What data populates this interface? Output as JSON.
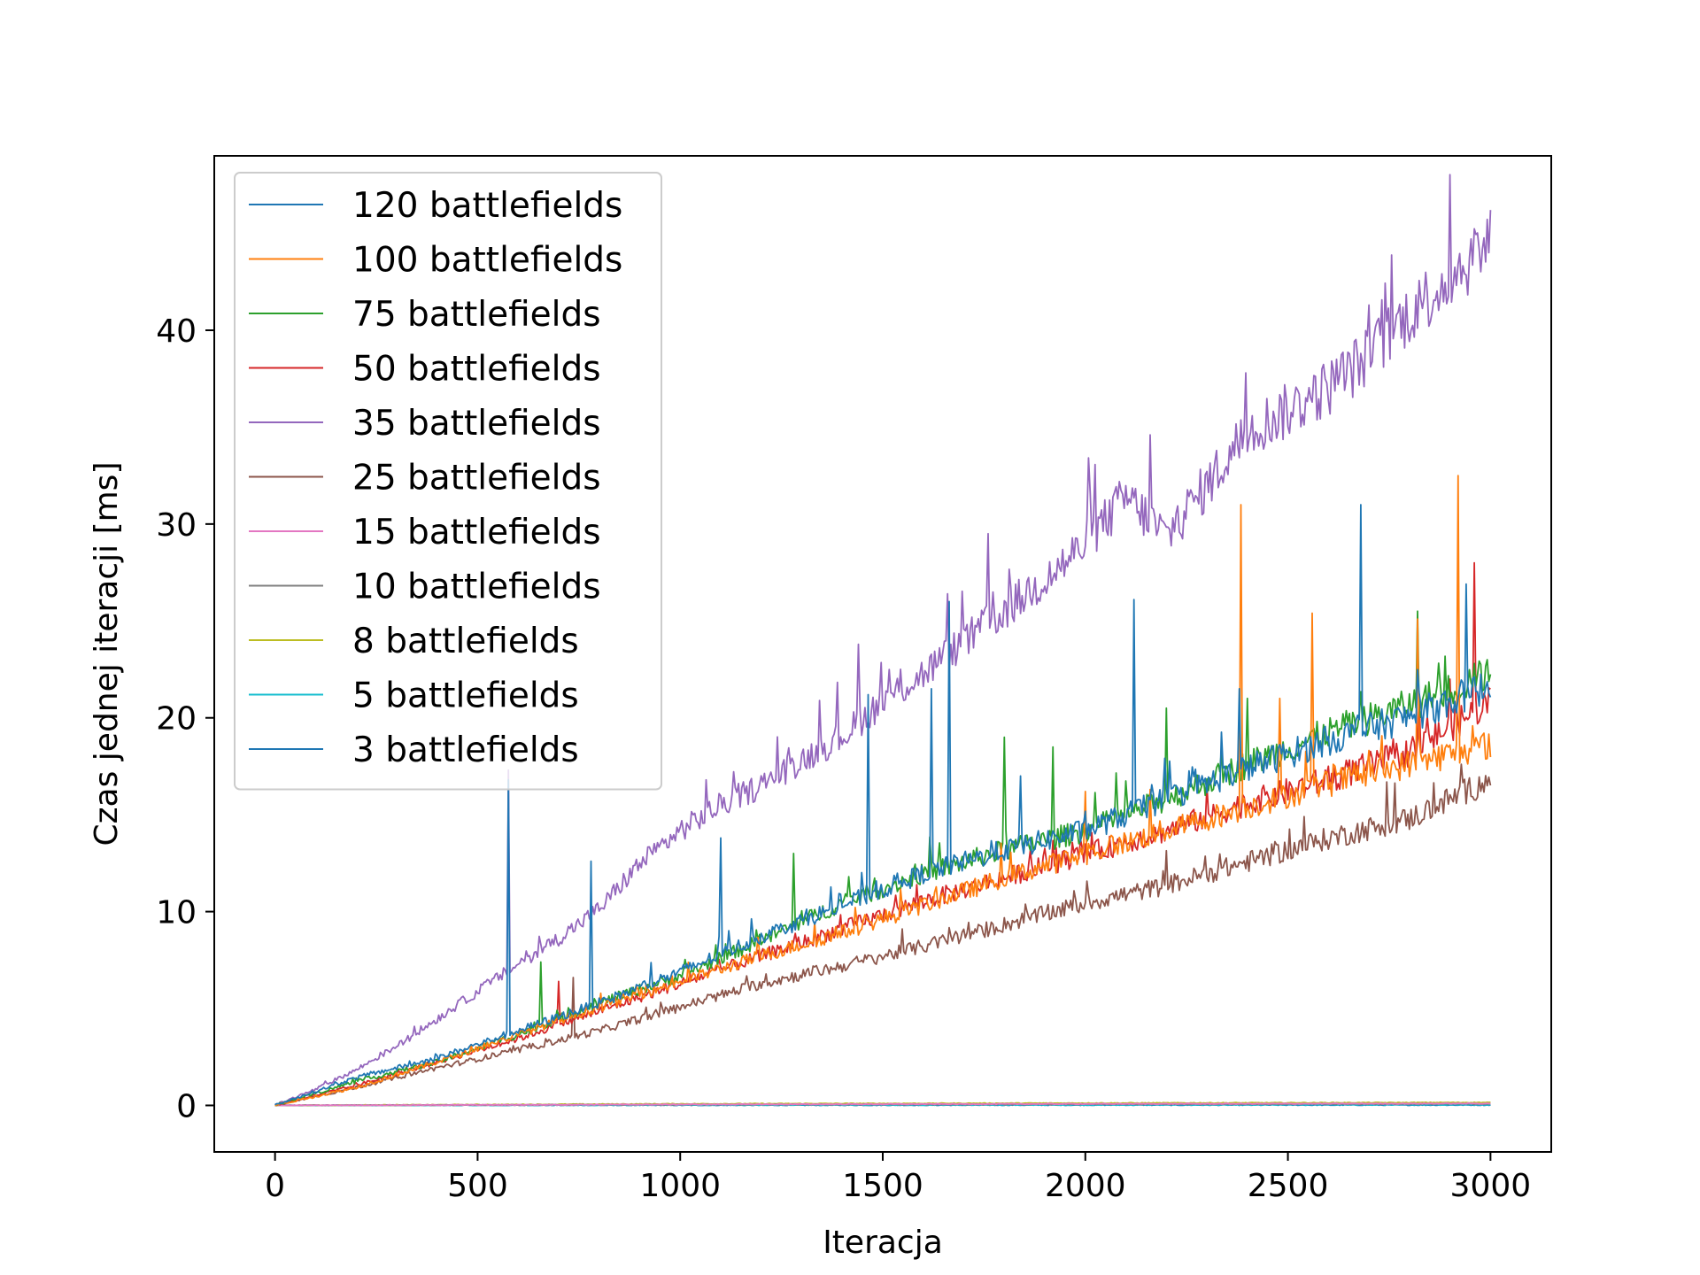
{
  "chart_data": {
    "type": "line",
    "title": "",
    "xlabel": "Iteracja",
    "ylabel": "Czas jednej iteracji [ms]",
    "xlim": [
      -150,
      3150
    ],
    "ylim": [
      -2.4,
      49
    ],
    "x_ticks": [
      0,
      500,
      1000,
      1500,
      2000,
      2500,
      3000
    ],
    "y_ticks": [
      0,
      10,
      20,
      30,
      40
    ],
    "grid": false,
    "legend_position": "upper-left",
    "series": [
      {
        "name": "120 battlefields",
        "color": "#1f77b4",
        "x": [
          0,
          200,
          400,
          600,
          800,
          1000,
          1200,
          1400,
          1600,
          1800,
          2000,
          2200,
          2400,
          2600,
          2800,
          3000
        ],
        "y": [
          0,
          1.4,
          2.4,
          3.8,
          5.2,
          6.8,
          8.6,
          10.2,
          11.8,
          13.0,
          14.0,
          15.6,
          17.2,
          18.6,
          19.8,
          21.4
        ],
        "spikes": [
          [
            575,
            16.8
          ],
          [
            780,
            12.6
          ],
          [
            978,
            12.3
          ],
          [
            1100,
            13.8
          ],
          [
            1210,
            13.1
          ],
          [
            1465,
            21.2
          ],
          [
            1620,
            21.5
          ],
          [
            1665,
            26.0
          ],
          [
            1840,
            17.0
          ],
          [
            2120,
            26.1
          ],
          [
            2380,
            21.5
          ],
          [
            2680,
            31.0
          ],
          [
            2940,
            26.9
          ]
        ]
      },
      {
        "name": "100 battlefields",
        "color": "#ff7f0e",
        "x": [
          0,
          200,
          400,
          600,
          800,
          1000,
          1200,
          1400,
          1600,
          1800,
          2000,
          2200,
          2400,
          2600,
          2800,
          3000
        ],
        "y": [
          0,
          0.9,
          2.2,
          3.6,
          5.0,
          6.3,
          7.6,
          8.8,
          10.2,
          11.6,
          12.8,
          14.0,
          15.2,
          16.4,
          17.4,
          18.4
        ],
        "spikes": [
          [
            1590,
            12.1
          ],
          [
            2000,
            16.2
          ],
          [
            2160,
            16.3
          ],
          [
            2383,
            31.0
          ],
          [
            2480,
            21.0
          ],
          [
            2560,
            25.4
          ],
          [
            2820,
            25.1
          ],
          [
            2920,
            32.5
          ],
          [
            2990,
            24.5
          ]
        ]
      },
      {
        "name": "75 battlefields",
        "color": "#2ca02c",
        "x": [
          0,
          200,
          400,
          600,
          800,
          1000,
          1200,
          1400,
          1600,
          1800,
          2000,
          2200,
          2400,
          2600,
          2800,
          3000
        ],
        "y": [
          0,
          1.2,
          2.2,
          3.6,
          5.2,
          6.6,
          8.4,
          10.3,
          11.8,
          13.0,
          14.0,
          15.6,
          17.4,
          19.0,
          20.4,
          22.0
        ],
        "spikes": [
          [
            655,
            7.4
          ],
          [
            1280,
            13.0
          ],
          [
            1550,
            17.0
          ],
          [
            1800,
            19.0
          ],
          [
            1920,
            18.5
          ],
          [
            2200,
            20.5
          ],
          [
            2400,
            21.0
          ],
          [
            2650,
            26.0
          ],
          [
            2820,
            25.5
          ],
          [
            2960,
            22.8
          ]
        ]
      },
      {
        "name": "50 battlefields",
        "color": "#d62728",
        "x": [
          0,
          200,
          400,
          600,
          800,
          1000,
          1200,
          1400,
          1600,
          1800,
          2000,
          2200,
          2400,
          2600,
          2800,
          3000
        ],
        "y": [
          0,
          1.0,
          2.2,
          3.4,
          4.8,
          6.2,
          7.6,
          9.0,
          10.4,
          11.6,
          12.8,
          14.0,
          15.4,
          16.6,
          18.0,
          20.6
        ],
        "spikes": [
          [
            700,
            6.4
          ],
          [
            1450,
            12.5
          ],
          [
            1850,
            13.5
          ],
          [
            2300,
            16.5
          ],
          [
            2600,
            17.5
          ],
          [
            2900,
            22.0
          ],
          [
            2960,
            28.0
          ]
        ]
      },
      {
        "name": "35 battlefields",
        "color": "#9467bd",
        "x": [
          0,
          100,
          200,
          300,
          400,
          500,
          600,
          700,
          800,
          900,
          1000,
          1100,
          1200,
          1300,
          1400,
          1500,
          1600,
          1700,
          1800,
          1900,
          2000,
          2100,
          2200,
          2300,
          2400,
          2500,
          2600,
          2700,
          2800,
          3000
        ],
        "y": [
          0,
          0.8,
          1.8,
          3.0,
          4.4,
          5.8,
          7.2,
          8.5,
          10.0,
          12.3,
          14.0,
          15.3,
          16.3,
          17.6,
          18.8,
          20.6,
          22.0,
          23.6,
          25.2,
          26.8,
          28.6,
          31.0,
          29.0,
          31.6,
          34.4,
          35.4,
          36.6,
          38.2,
          40.4,
          44.0
        ],
        "spikes": [
          [
            575,
            17.3
          ],
          [
            830,
            19.6
          ],
          [
            1065,
            16.8
          ],
          [
            1440,
            23.8
          ],
          [
            1670,
            23.0
          ],
          [
            1760,
            29.5
          ],
          [
            1950,
            31.0
          ],
          [
            2070,
            35.4
          ],
          [
            2160,
            34.6
          ],
          [
            2430,
            39.8
          ],
          [
            2510,
            39.6
          ],
          [
            2590,
            40.1
          ],
          [
            2700,
            41.3
          ],
          [
            2850,
            45.6
          ],
          [
            2970,
            46.9
          ]
        ]
      },
      {
        "name": "25 battlefields",
        "color": "#8c564b",
        "x": [
          0,
          200,
          400,
          600,
          800,
          1000,
          1200,
          1400,
          1600,
          1800,
          2000,
          2200,
          2400,
          2600,
          2800,
          3000
        ],
        "y": [
          0,
          0.9,
          1.9,
          2.8,
          3.8,
          5.0,
          6.2,
          7.1,
          8.1,
          9.2,
          10.3,
          11.2,
          12.4,
          13.6,
          14.6,
          16.6
        ],
        "spikes": [
          [
            735,
            6.6
          ],
          [
            1930,
            11.3
          ],
          [
            2150,
            11.9
          ],
          [
            2450,
            14.4
          ],
          [
            2725,
            14.5
          ],
          [
            2930,
            17.0
          ]
        ]
      },
      {
        "name": "15 battlefields",
        "color": "#e377c2",
        "x": [
          0,
          1000,
          2000,
          3000
        ],
        "y": [
          0,
          0.05,
          0.08,
          0.1
        ],
        "spikes": []
      },
      {
        "name": "10 battlefields",
        "color": "#7f7f7f",
        "x": [
          0,
          1000,
          2000,
          3000
        ],
        "y": [
          0,
          0.04,
          0.06,
          0.08
        ],
        "spikes": []
      },
      {
        "name": "8 battlefields",
        "color": "#bcbd22",
        "x": [
          0,
          1000,
          2000,
          3000
        ],
        "y": [
          0,
          0.08,
          0.12,
          0.15
        ],
        "spikes": [
          [
            2070,
            0.35
          ]
        ]
      },
      {
        "name": "5 battlefields",
        "color": "#17becf",
        "x": [
          0,
          1000,
          2000,
          3000
        ],
        "y": [
          0,
          0.02,
          0.03,
          0.04
        ],
        "spikes": []
      },
      {
        "name": "3 battlefields",
        "color": "#1f77b4",
        "x": [
          0,
          1000,
          2000,
          3000
        ],
        "y": [
          0,
          0.01,
          0.02,
          0.02
        ],
        "spikes": []
      }
    ]
  }
}
